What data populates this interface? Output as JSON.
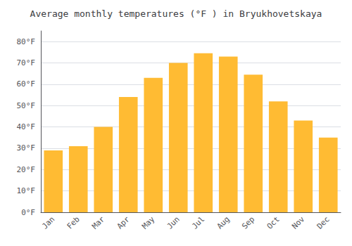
{
  "chart_data": {
    "type": "bar",
    "title": "Average monthly temperatures (°F ) in Bryukhovetskaya",
    "categories": [
      "Jan",
      "Feb",
      "Mar",
      "Apr",
      "May",
      "Jun",
      "Jul",
      "Aug",
      "Sep",
      "Oct",
      "Nov",
      "Dec"
    ],
    "values": [
      29,
      31,
      40,
      54,
      63,
      70,
      74.5,
      73,
      64.5,
      52,
      43,
      35
    ],
    "color": "#FFBB33",
    "ylim": [
      0,
      85
    ],
    "yticks": [
      {
        "value": 0,
        "label": "0°F"
      },
      {
        "value": 10,
        "label": "10°F"
      },
      {
        "value": 20,
        "label": "20°F"
      },
      {
        "value": 30,
        "label": "30°F"
      },
      {
        "value": 40,
        "label": "40°F"
      },
      {
        "value": 50,
        "label": "50°F"
      },
      {
        "value": 60,
        "label": "60°F"
      },
      {
        "value": 70,
        "label": "70°F"
      },
      {
        "value": 80,
        "label": "80°F"
      }
    ],
    "grid": true
  }
}
